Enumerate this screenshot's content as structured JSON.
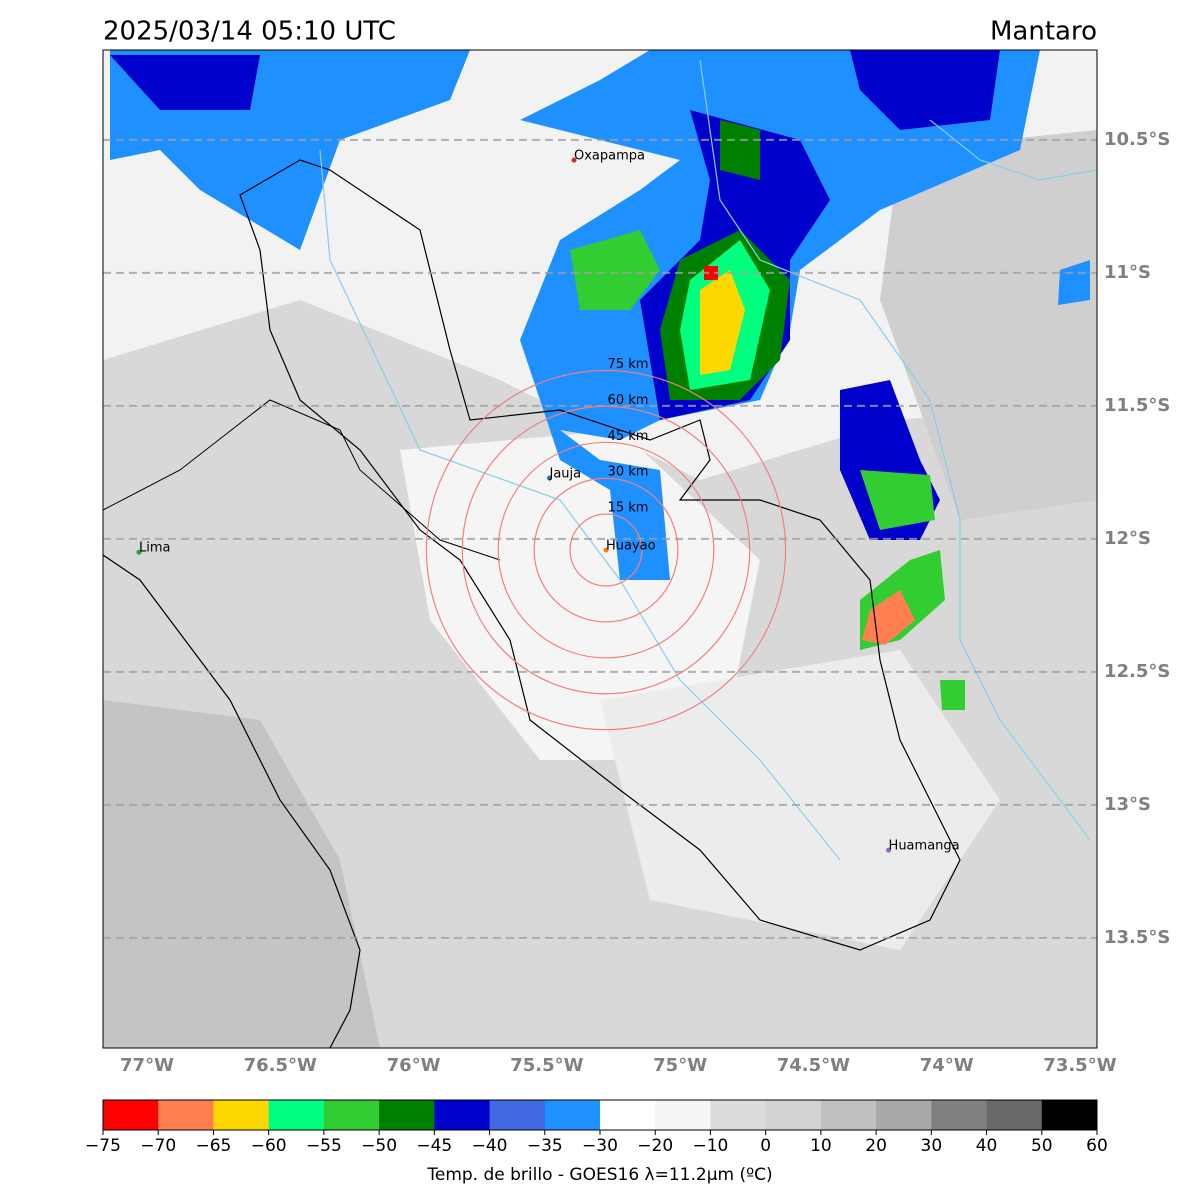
{
  "header": {
    "title": "2025/03/14 05:10 UTC",
    "region": "Mantaro"
  },
  "map": {
    "xlim": [
      -77.165,
      -73.436
    ],
    "ylim": [
      -13.914,
      -10.162
    ],
    "xticks": [
      {
        "value": -77,
        "label": "77°W"
      },
      {
        "value": -76.5,
        "label": "76.5°W"
      },
      {
        "value": -76,
        "label": "76°W"
      },
      {
        "value": -75.5,
        "label": "75.5°W"
      },
      {
        "value": -75,
        "label": "75°W"
      },
      {
        "value": -74.5,
        "label": "74.5°W"
      },
      {
        "value": -74,
        "label": "74°W"
      },
      {
        "value": -73.5,
        "label": "73.5°W"
      }
    ],
    "yticks": [
      {
        "value": -10.5,
        "label": "10.5°S"
      },
      {
        "value": -11,
        "label": "11°S"
      },
      {
        "value": -11.5,
        "label": "11.5°S"
      },
      {
        "value": -12,
        "label": "12°S"
      },
      {
        "value": -12.5,
        "label": "12.5°S"
      },
      {
        "value": -13,
        "label": "13°S"
      },
      {
        "value": -13.5,
        "label": "13.5°S"
      }
    ],
    "grid": true,
    "cities": [
      {
        "name": "Oxapampa",
        "lon": -75.398,
        "lat": -10.576,
        "color": "#d62728"
      },
      {
        "name": "Jauja",
        "lon": -75.49,
        "lat": -11.771,
        "color": "#1f77b4"
      },
      {
        "name": "Huayao",
        "lon": -75.278,
        "lat": -12.042,
        "color": "#ff7f0e"
      },
      {
        "name": "Lima",
        "lon": -77.03,
        "lat": -12.05,
        "color": "#2ca02c"
      },
      {
        "name": "Huamanga",
        "lon": -74.218,
        "lat": -13.17,
        "color": "#9467bd"
      }
    ],
    "rings": [
      {
        "value": 15,
        "label": "15 km"
      },
      {
        "value": 30,
        "label": "30 km"
      },
      {
        "value": 45,
        "label": "45 km"
      },
      {
        "value": 60,
        "label": "60 km"
      },
      {
        "value": 75,
        "label": "75 km"
      }
    ],
    "ring_color": "#f08080"
  },
  "colorbar": {
    "ticks": [
      {
        "value": -75,
        "label": "−75"
      },
      {
        "value": -70,
        "label": "−70"
      },
      {
        "value": -65,
        "label": "−65"
      },
      {
        "value": -60,
        "label": "−60"
      },
      {
        "value": -55,
        "label": "−55"
      },
      {
        "value": -50,
        "label": "−50"
      },
      {
        "value": -45,
        "label": "−45"
      },
      {
        "value": -40,
        "label": "−40"
      },
      {
        "value": -35,
        "label": "−35"
      },
      {
        "value": -30,
        "label": "−30"
      },
      {
        "value": -20,
        "label": "−20"
      },
      {
        "value": -10,
        "label": "−10"
      },
      0,
      10,
      20,
      30,
      40,
      50,
      60
    ],
    "colors": [
      "#ff0000",
      "#ff7f50",
      "#ffd700",
      "#00ff7f",
      "#32cd32",
      "#008000",
      "#0000cd",
      "#4169e1",
      "#1e90ff",
      "#ffffff",
      "#f5f5f5",
      "#dcdcdc",
      "#d3d3d3",
      "#c0c0c0",
      "#a9a9a9",
      "#808080",
      "#696969",
      "#000000"
    ],
    "label": "Temp. de brillo - GOES16 λ=11.2μm (ºC)"
  }
}
